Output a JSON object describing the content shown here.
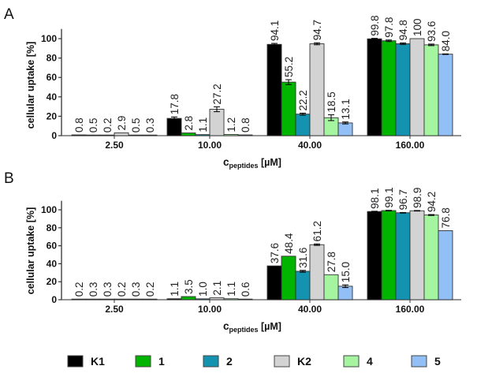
{
  "chart_data": {
    "type": "bar",
    "legend": {
      "placement": "bottom"
    },
    "series_meta": [
      {
        "name": "K1",
        "color": "#000000"
      },
      {
        "name": "1",
        "color": "#00b400"
      },
      {
        "name": "2",
        "color": "#1393b0"
      },
      {
        "name": "K2",
        "color": "#d3d3d3"
      },
      {
        "name": "4",
        "color": "#a5f5a0"
      },
      {
        "name": "5",
        "color": "#92bff5"
      }
    ],
    "panels": [
      {
        "label": "A",
        "categories": [
          "2.50",
          "10.00",
          "40.00",
          "160.00"
        ],
        "xlabel_main": "c",
        "xlabel_sub": "peptides",
        "xlabel_unit": " [µM]",
        "ylabel": "cellular uptake [%]",
        "ylim": [
          0,
          110
        ],
        "yticks": [
          0,
          20,
          40,
          60,
          80,
          100
        ],
        "values": [
          [
            "0.8",
            "0.5",
            "0.2",
            "2.9",
            "0.5",
            "0.3"
          ],
          [
            "17.8",
            "2.8",
            "1.1",
            "27.2",
            "1.2",
            "0.8"
          ],
          [
            "94.1",
            "55.2",
            "22.2",
            "94.7",
            "18.5",
            "13.1"
          ],
          [
            "99.8",
            "97.8",
            "94.8",
            "100",
            "93.6",
            "84.0"
          ]
        ],
        "errors": [
          [
            0,
            0,
            0,
            0,
            0,
            0
          ],
          [
            1.5,
            0,
            0,
            2.5,
            0,
            0
          ],
          [
            1,
            2.5,
            1,
            1,
            3,
            1
          ],
          [
            0.5,
            0.8,
            0.8,
            0,
            0.8,
            0.3
          ]
        ]
      },
      {
        "label": "B",
        "categories": [
          "2.50",
          "10.00",
          "40.00",
          "160.00"
        ],
        "xlabel_main": "c",
        "xlabel_sub": "peptides",
        "xlabel_unit": " [µM]",
        "ylabel": "cellular uptake [%]",
        "ylim": [
          0,
          110
        ],
        "yticks": [
          0,
          20,
          40,
          60,
          80,
          100
        ],
        "values": [
          [
            "0.2",
            "0.3",
            "0.3",
            "0.2",
            "0.3",
            "0.2"
          ],
          [
            "1.1",
            "3.5",
            "1.0",
            "2.1",
            "1.1",
            "0.6"
          ],
          [
            "37.6",
            "48.4",
            "31.6",
            "61.2",
            "27.8",
            "15.0"
          ],
          [
            "98.1",
            "99.1",
            "96.7",
            "98.9",
            "94.2",
            "76.8"
          ]
        ],
        "errors": [
          [
            0,
            0,
            0,
            0,
            0,
            0
          ],
          [
            0,
            0,
            0,
            0,
            0,
            0
          ],
          [
            0,
            0,
            1,
            0.8,
            0,
            1.5
          ],
          [
            0.3,
            0.3,
            0.3,
            0.3,
            0.5,
            0
          ]
        ]
      }
    ]
  }
}
